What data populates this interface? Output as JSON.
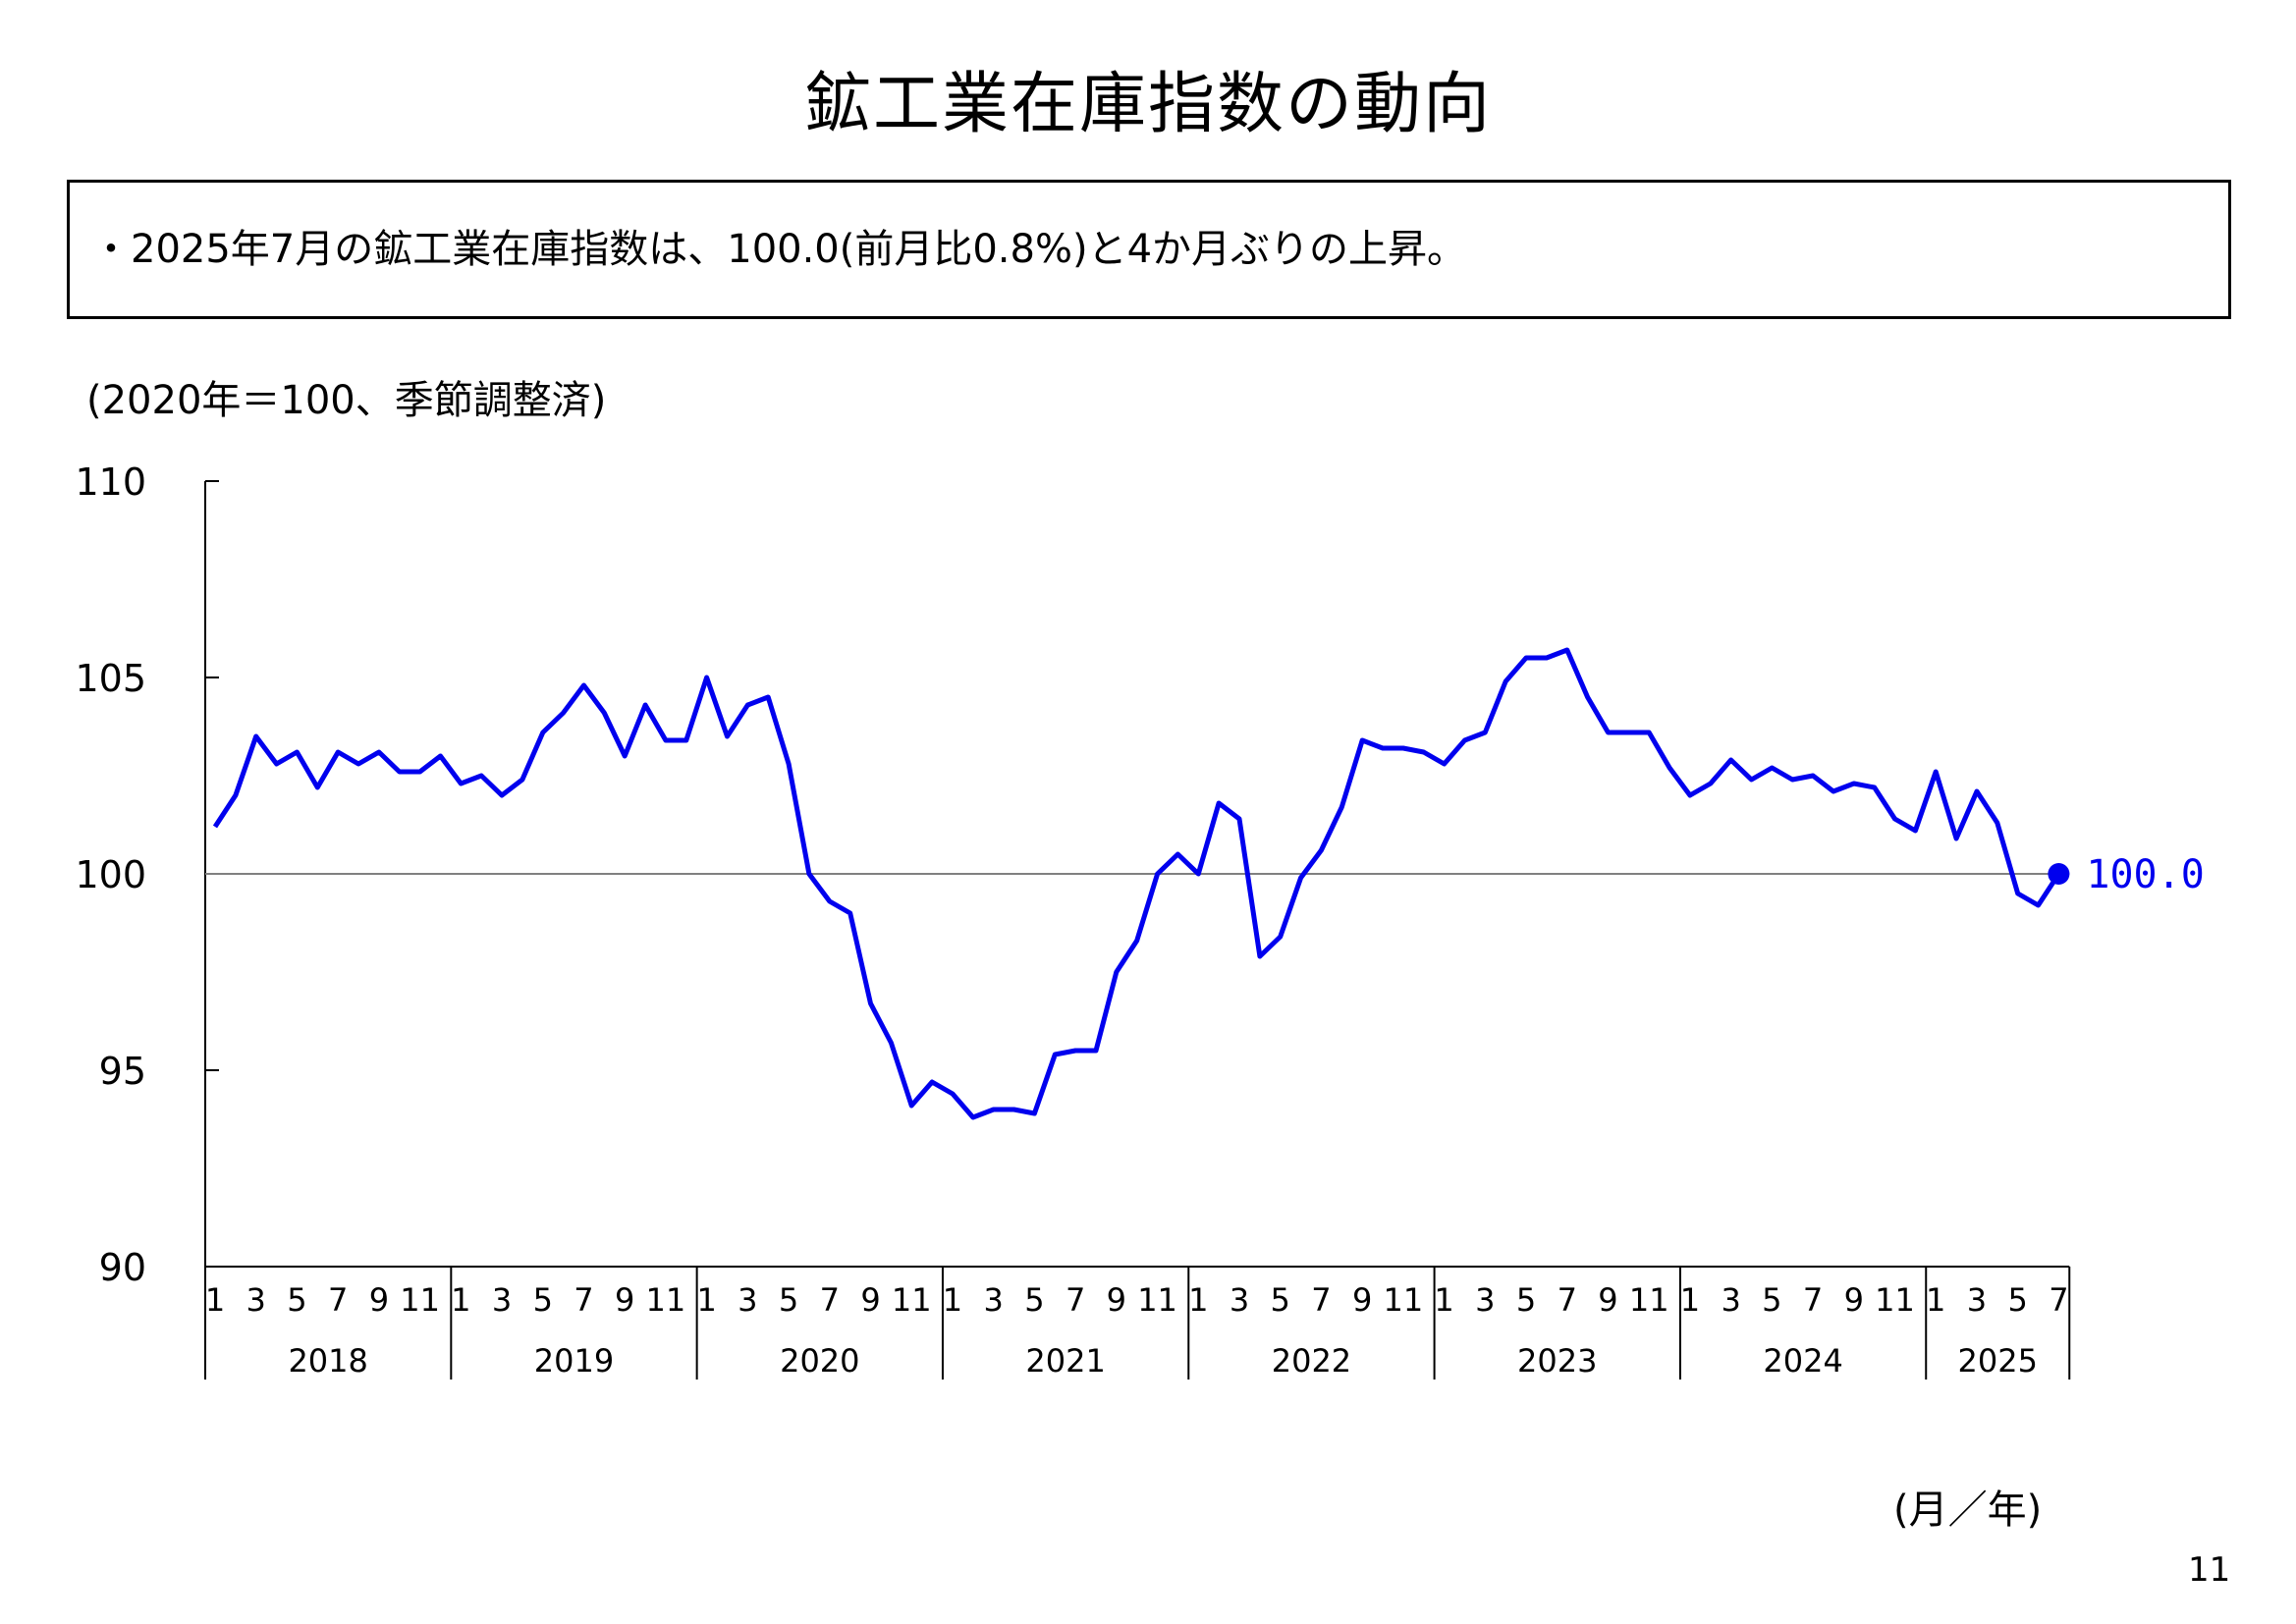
{
  "page": {
    "title": "鉱工業在庫指数の動向",
    "summary": "・2025年7月の鉱工業在庫指数は、100.0(前月比0.8%)と4か月ぶりの上昇。",
    "page_number": "11"
  },
  "colors": {
    "line": "#0000ee",
    "reference_line": "#808080",
    "axis": "#000000"
  },
  "chart_data": {
    "type": "line",
    "title": "",
    "unit_label": "(2020年＝100、季節調整済)",
    "xlabel": "(月／年)",
    "ylabel": "",
    "ylim": [
      90,
      110
    ],
    "yticks": [
      "110",
      "105",
      "100",
      "95",
      "90"
    ],
    "reference_line": 100,
    "grid": false,
    "years": [
      "2018",
      "2019",
      "2020",
      "2021",
      "2022",
      "2023",
      "2024",
      "2025"
    ],
    "month_tick_labels": [
      "1",
      "3",
      "5",
      "7",
      "9",
      "11"
    ],
    "last_year_months": [
      "1",
      "3",
      "5",
      "7"
    ],
    "start": "2018-01",
    "end": "2025-07",
    "end_label": "100.0",
    "series": [
      {
        "values": [
          101.2,
          102.0,
          103.5,
          102.8,
          103.1,
          102.2,
          103.1,
          102.8,
          103.1,
          102.6,
          102.6,
          103.0,
          102.3,
          102.5,
          102.0,
          102.4,
          103.6,
          104.1,
          104.8,
          104.1,
          103.0,
          104.3,
          103.4,
          103.4,
          105.0,
          103.5,
          104.3,
          104.5,
          102.8,
          100.0,
          99.3,
          99.0,
          96.7,
          95.7,
          94.1,
          94.7,
          94.4,
          93.8,
          94.0,
          94.0,
          93.9,
          95.4,
          95.5,
          95.5,
          97.5,
          98.3,
          100.0,
          100.5,
          100.0,
          101.8,
          101.4,
          97.9,
          98.4,
          99.9,
          100.6,
          101.7,
          103.4,
          103.2,
          103.2,
          103.1,
          102.8,
          103.4,
          103.6,
          104.9,
          105.5,
          105.5,
          105.7,
          104.5,
          103.6,
          103.6,
          103.6,
          102.7,
          102.0,
          102.3,
          102.9,
          102.4,
          102.7,
          102.4,
          102.5,
          102.1,
          102.3,
          102.2,
          101.4,
          101.1,
          102.6,
          100.9,
          102.1,
          101.3,
          99.5,
          99.2,
          100.0
        ]
      }
    ]
  }
}
